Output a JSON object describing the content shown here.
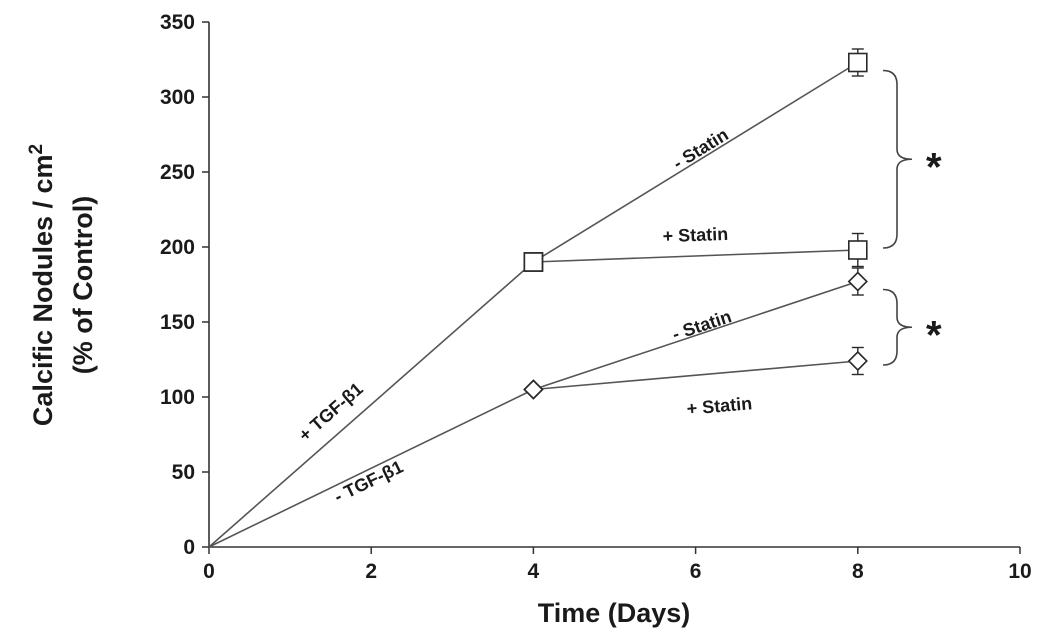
{
  "chart_data": {
    "type": "line",
    "xlabel": "Time (Days)",
    "ylabel_line1": "Calcific Nodules / cm",
    "ylabel_sup": "2",
    "ylabel_line2": "(% of Control)",
    "xlim": [
      0,
      10
    ],
    "ylim": [
      0,
      350
    ],
    "xticks": [
      0,
      2,
      4,
      6,
      8,
      10
    ],
    "yticks": [
      0,
      50,
      100,
      150,
      200,
      250,
      300,
      350
    ],
    "grid": false,
    "series": [
      {
        "marker": "square",
        "x": [
          0,
          4
        ],
        "y": [
          0,
          190
        ],
        "err": [
          0,
          0
        ]
      },
      {
        "marker": "square",
        "x": [
          4,
          8
        ],
        "y": [
          190,
          323
        ],
        "err": [
          0,
          9
        ]
      },
      {
        "marker": "square",
        "x": [
          4,
          8
        ],
        "y": [
          190,
          198
        ],
        "err": [
          0,
          11
        ]
      },
      {
        "marker": "diamond",
        "x": [
          0,
          4
        ],
        "y": [
          0,
          105
        ],
        "err": [
          0,
          0
        ]
      },
      {
        "marker": "diamond",
        "x": [
          4,
          8
        ],
        "y": [
          105,
          177
        ],
        "err": [
          0,
          9
        ]
      },
      {
        "marker": "diamond",
        "x": [
          4,
          8
        ],
        "y": [
          105,
          124
        ],
        "err": [
          0,
          9
        ]
      }
    ],
    "annotations": [
      {
        "text": "+ TGF-β1",
        "x": 1.55,
        "y": 87
      },
      {
        "text": "- TGF-β1",
        "x": 2.0,
        "y": 40
      },
      {
        "text": "- Statin",
        "x": 6.1,
        "y": 262
      },
      {
        "text": "+ Statin",
        "x": 6.0,
        "y": 204
      },
      {
        "text": "- Statin",
        "x": 6.1,
        "y": 144
      },
      {
        "text": "+ Statin",
        "x": 6.3,
        "y": 90
      }
    ],
    "significance": [
      {
        "label": "*",
        "y_range": [
          198,
          323
        ],
        "note": "bracket between -Statin and +Statin at day 8 (upper pair)"
      },
      {
        "label": "*",
        "y_range": [
          120,
          177
        ],
        "note": "bracket between -Statin and +Statin at day 8 (lower pair)"
      }
    ]
  }
}
